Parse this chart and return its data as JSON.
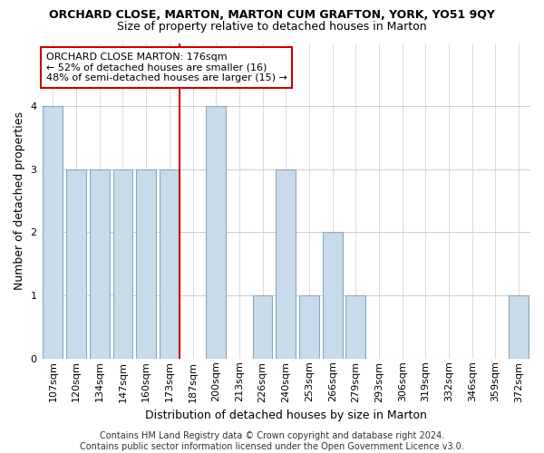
{
  "title": "ORCHARD CLOSE, MARTON, MARTON CUM GRAFTON, YORK, YO51 9QY",
  "subtitle": "Size of property relative to detached houses in Marton",
  "xlabel": "Distribution of detached houses by size in Marton",
  "ylabel": "Number of detached properties",
  "bins": [
    "107sqm",
    "120sqm",
    "134sqm",
    "147sqm",
    "160sqm",
    "173sqm",
    "187sqm",
    "200sqm",
    "213sqm",
    "226sqm",
    "240sqm",
    "253sqm",
    "266sqm",
    "279sqm",
    "293sqm",
    "306sqm",
    "319sqm",
    "332sqm",
    "346sqm",
    "359sqm",
    "372sqm"
  ],
  "values": [
    4,
    3,
    3,
    3,
    3,
    3,
    0,
    4,
    0,
    1,
    3,
    1,
    2,
    1,
    0,
    0,
    0,
    0,
    0,
    0,
    1
  ],
  "bar_color": "#c9daea",
  "bar_edge_color": "#8aaabb",
  "ref_line_index": 5,
  "ref_line_color": "#cc0000",
  "ylim": [
    0,
    5
  ],
  "yticks": [
    0,
    1,
    2,
    3,
    4,
    5
  ],
  "annotation_text": "ORCHARD CLOSE MARTON: 176sqm\n← 52% of detached houses are smaller (16)\n48% of semi-detached houses are larger (15) →",
  "annotation_box_color": "#ffffff",
  "annotation_box_edge": "#cc0000",
  "footer": "Contains HM Land Registry data © Crown copyright and database right 2024.\nContains public sector information licensed under the Open Government Licence v3.0.",
  "bg_color": "#ffffff",
  "grid_color": "#cccccc",
  "title_fontsize": 9,
  "subtitle_fontsize": 9,
  "ylabel_fontsize": 9,
  "xlabel_fontsize": 9,
  "tick_fontsize": 8,
  "annotation_fontsize": 8,
  "footer_fontsize": 7
}
